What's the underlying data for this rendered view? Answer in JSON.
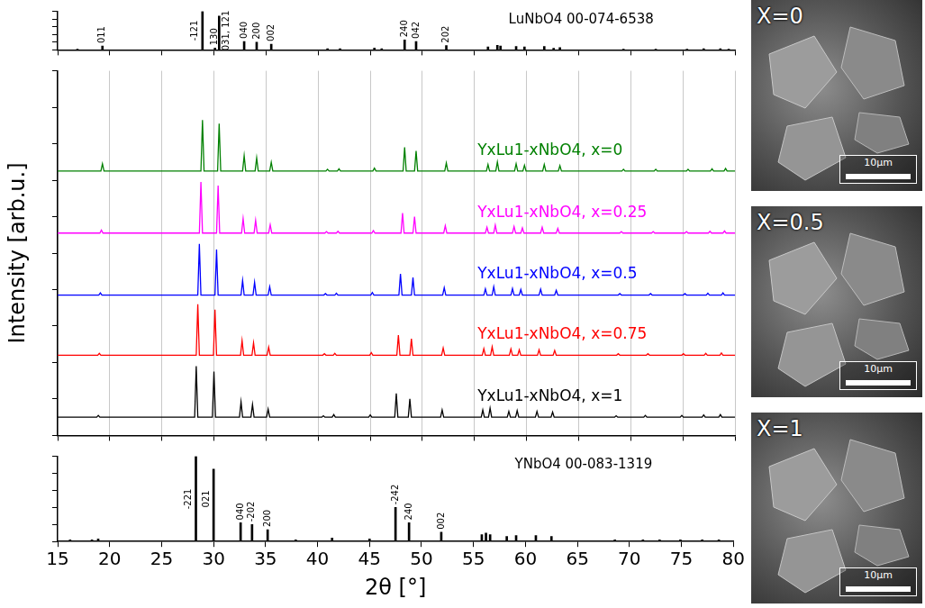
{
  "chart_data": [
    {
      "type": "bar",
      "title": "LuNbO4 00-074-6538",
      "color": "#000000",
      "x": [
        16.9,
        19.3,
        28.9,
        30.1,
        30.5,
        32.9,
        34.1,
        35.5,
        40.9,
        42.1,
        45.4,
        46.1,
        48.3,
        49.4,
        52.3,
        56.3,
        57.2,
        57.5,
        59.0,
        59.8,
        61.7,
        62.6,
        63.2,
        69.3,
        72.4,
        75.4,
        77.0,
        78.6,
        79.4
      ],
      "values": [
        2,
        10,
        100,
        5,
        88,
        22,
        20,
        15,
        3,
        3,
        5,
        3,
        26,
        22,
        11,
        8,
        12,
        10,
        9,
        8,
        9,
        4,
        6,
        2,
        2,
        2,
        3,
        3,
        2
      ],
      "annotations": [
        {
          "x": 19.3,
          "text": "011"
        },
        {
          "x": 28.9,
          "text": "-121"
        },
        {
          "x": 30.1,
          "text": "130"
        },
        {
          "x": 30.5,
          "text": "031, 121"
        },
        {
          "x": 32.9,
          "text": "040"
        },
        {
          "x": 34.1,
          "text": "200"
        },
        {
          "x": 35.5,
          "text": "002"
        },
        {
          "x": 48.3,
          "text": "240"
        },
        {
          "x": 49.4,
          "text": "042"
        },
        {
          "x": 52.3,
          "text": "202"
        }
      ],
      "xlim": [
        15,
        80
      ],
      "xticks": [
        15,
        20,
        25,
        30,
        35,
        40,
        45,
        50,
        55,
        60,
        65,
        70,
        75,
        80
      ],
      "ylim": [
        0,
        100
      ],
      "yticks": [
        0,
        20,
        40,
        60,
        80,
        100
      ],
      "grid": false,
      "tick_labels": false
    },
    {
      "type": "line",
      "ylabel": "Intensity [arb.u.]",
      "xlim": [
        15,
        80
      ],
      "xticks": [
        15,
        20,
        25,
        30,
        35,
        40,
        45,
        50,
        55,
        60,
        65,
        70,
        75,
        80
      ],
      "ylim": [
        0,
        100
      ],
      "yticks": [
        0,
        10,
        20,
        30,
        40,
        50,
        60,
        70,
        80,
        90,
        100
      ],
      "grid": true,
      "tick_labels": false,
      "series": [
        {
          "name": "YxLu1-xNbO4, x=0",
          "color": "#008000",
          "x": [
            15,
            19.15,
            19.3,
            19.45,
            28.75,
            28.9,
            29.05,
            30.35,
            30.5,
            30.65,
            32.75,
            32.9,
            33.05,
            33.95,
            34.1,
            34.25,
            35.35,
            35.5,
            35.65,
            40.75,
            40.9,
            41.05,
            41.85,
            42,
            42.15,
            45.25,
            45.4,
            45.55,
            48.15,
            48.3,
            48.45,
            49.25,
            49.4,
            49.55,
            52.15,
            52.3,
            52.45,
            56.15,
            56.3,
            56.45,
            57.05,
            57.2,
            57.35,
            58.85,
            59,
            59.15,
            59.65,
            59.8,
            59.95,
            61.55,
            61.7,
            61.85,
            63.05,
            63.2,
            63.35,
            69.15,
            69.3,
            69.45,
            72.25,
            72.4,
            72.55,
            75.35,
            75.5,
            75.65,
            77.65,
            77.8,
            77.95,
            78.95,
            79.1,
            79.25,
            80
          ],
          "values": [
            72.5,
            72.5,
            74.5,
            72.5,
            72.5,
            86.5,
            72.5,
            72.5,
            85.5,
            72.5,
            72.5,
            76.7,
            72.5,
            72.5,
            76.1,
            72.5,
            72.5,
            74.9,
            72.5,
            72.5,
            73,
            72.5,
            72.5,
            73.1,
            72.5,
            72.5,
            73.3,
            72.5,
            72.5,
            79,
            72.5,
            72.5,
            78,
            72.5,
            72.5,
            74.7,
            72.5,
            72.5,
            74.3,
            72.5,
            72.5,
            75,
            72.5,
            72.5,
            74.5,
            72.5,
            72.5,
            74.1,
            72.5,
            72.5,
            74.3,
            72.5,
            72.5,
            74,
            72.5,
            72.5,
            73,
            72.5,
            72.5,
            73,
            72.5,
            72.5,
            73,
            72.5,
            72.5,
            73.1,
            72.5,
            72.5,
            73.2,
            72.5,
            72.5
          ]
        },
        {
          "name": "YxLu1-xNbO4, x=0.25",
          "color": "#ff00ff",
          "x": [
            15,
            19.05,
            19.2,
            19.35,
            28.6,
            28.75,
            28.9,
            30.25,
            30.4,
            30.55,
            32.65,
            32.8,
            32.95,
            33.85,
            34,
            34.15,
            35.25,
            35.4,
            35.55,
            40.65,
            40.8,
            40.95,
            41.75,
            41.9,
            42.05,
            45.15,
            45.3,
            45.45,
            47.95,
            48.1,
            48.25,
            49.1,
            49.25,
            49.4,
            52.05,
            52.2,
            52.35,
            56.05,
            56.2,
            56.35,
            56.85,
            57,
            57.15,
            58.65,
            58.8,
            58.95,
            59.45,
            59.6,
            59.75,
            61.35,
            61.5,
            61.65,
            62.85,
            63,
            63.15,
            68.95,
            69.1,
            69.25,
            72,
            72.15,
            72.3,
            75.2,
            75.35,
            75.5,
            77.45,
            77.6,
            77.75,
            78.85,
            79,
            79.15,
            80
          ],
          "values": [
            55.5,
            55.5,
            56.3,
            55.5,
            55.5,
            69.5,
            55.5,
            55.5,
            68.5,
            55.5,
            55.5,
            59.5,
            55.5,
            55.5,
            59,
            55.5,
            55.5,
            57.8,
            55.5,
            55.5,
            55.9,
            55.5,
            55.5,
            56,
            55.5,
            55.5,
            56.2,
            55.5,
            55.5,
            61,
            55.5,
            55.5,
            60,
            55.5,
            55.5,
            57.5,
            55.5,
            55.5,
            57.1,
            55.5,
            55.5,
            57.7,
            55.5,
            55.5,
            57.3,
            55.5,
            55.5,
            56.9,
            55.5,
            55.5,
            57.1,
            55.5,
            55.5,
            56.8,
            55.5,
            55.5,
            55.9,
            55.5,
            55.5,
            55.9,
            55.5,
            55.5,
            55.9,
            55.5,
            55.5,
            56,
            55.5,
            55.5,
            56.1,
            55.5,
            55.5
          ]
        },
        {
          "name": "YxLu1-xNbO4, x=0.5",
          "color": "#0000ff",
          "x": [
            15,
            18.95,
            19.1,
            19.25,
            28.45,
            28.6,
            28.75,
            30.1,
            30.25,
            30.4,
            32.6,
            32.75,
            32.9,
            33.75,
            33.9,
            34.05,
            35.2,
            35.35,
            35.5,
            40.55,
            40.7,
            40.85,
            41.6,
            41.75,
            41.9,
            45.05,
            45.2,
            45.35,
            47.75,
            47.9,
            48.05,
            48.95,
            49.1,
            49.25,
            51.95,
            52.1,
            52.25,
            55.9,
            56.05,
            56.2,
            56.7,
            56.85,
            57,
            58.5,
            58.65,
            58.8,
            59.3,
            59.45,
            59.6,
            61.2,
            61.35,
            61.5,
            62.7,
            62.85,
            63,
            68.8,
            68.95,
            69.1,
            71.75,
            71.9,
            72.05,
            75.05,
            75.2,
            75.35,
            77.25,
            77.4,
            77.55,
            78.7,
            78.85,
            79,
            80
          ],
          "values": [
            38.5,
            38.5,
            39.1,
            38.5,
            38.5,
            52.5,
            38.5,
            38.5,
            51,
            38.5,
            38.5,
            42.5,
            38.5,
            38.5,
            42,
            38.5,
            38.5,
            40.8,
            38.5,
            38.5,
            38.9,
            38.5,
            38.5,
            39,
            38.5,
            38.5,
            39.2,
            38.5,
            38.5,
            44.3,
            38.5,
            38.5,
            43.3,
            38.5,
            38.5,
            40.5,
            38.5,
            38.5,
            40.2,
            38.5,
            38.5,
            40.8,
            38.5,
            38.5,
            40.3,
            38.5,
            38.5,
            40,
            38.5,
            38.5,
            40.1,
            38.5,
            38.5,
            39.8,
            38.5,
            38.5,
            38.9,
            38.5,
            38.5,
            38.9,
            38.5,
            38.5,
            38.9,
            38.5,
            38.5,
            39,
            38.5,
            38.5,
            39.1,
            38.5,
            38.5
          ]
        },
        {
          "name": "YxLu1-xNbO4, x=0.75",
          "color": "#ff0000",
          "x": [
            15,
            18.85,
            19,
            19.15,
            28.3,
            28.45,
            28.6,
            29.95,
            30.1,
            30.25,
            32.55,
            32.7,
            32.85,
            33.65,
            33.8,
            33.95,
            35.1,
            35.25,
            35.4,
            40.45,
            40.6,
            40.75,
            41.45,
            41.6,
            41.75,
            44.95,
            45.1,
            45.25,
            47.55,
            47.7,
            47.85,
            48.8,
            48.95,
            49.1,
            51.85,
            52,
            52.15,
            55.75,
            55.9,
            56.05,
            56.55,
            56.7,
            56.85,
            58.35,
            58.5,
            58.65,
            59.15,
            59.3,
            59.45,
            61.05,
            61.2,
            61.35,
            62.55,
            62.7,
            62.85,
            68.65,
            68.8,
            68.95,
            71.5,
            71.65,
            71.8,
            74.9,
            75.05,
            75.2,
            77.05,
            77.2,
            77.35,
            78.55,
            78.7,
            78.85,
            80
          ],
          "values": [
            22,
            22,
            22.5,
            22,
            22,
            36,
            22,
            22,
            34.5,
            22,
            22,
            26,
            22,
            22,
            25.4,
            22,
            22,
            24.2,
            22,
            22,
            22.4,
            22,
            22,
            22.5,
            22,
            22,
            22.7,
            22,
            22,
            27.5,
            22,
            22,
            26.5,
            22,
            22,
            24,
            22,
            22,
            23.8,
            22,
            22,
            24.3,
            22,
            22,
            23.7,
            22,
            22,
            23.5,
            22,
            22,
            23.5,
            22,
            22,
            23.3,
            22,
            22,
            22.4,
            22,
            22,
            22.4,
            22,
            22,
            22.4,
            22,
            22,
            22.5,
            22,
            22,
            22.6,
            22,
            22
          ]
        },
        {
          "name": "YxLu1-xNbO4, x=1",
          "color": "#000000",
          "x": [
            15,
            18.75,
            18.9,
            19.05,
            28.15,
            28.3,
            28.45,
            29.85,
            30,
            30.15,
            32.45,
            32.6,
            32.75,
            33.55,
            33.7,
            33.85,
            35.05,
            35.2,
            35.35,
            40.35,
            40.5,
            40.65,
            41.35,
            41.5,
            41.65,
            44.85,
            45,
            45.15,
            47.35,
            47.5,
            47.65,
            48.65,
            48.8,
            48.95,
            51.75,
            51.9,
            52.05,
            55.65,
            55.8,
            55.95,
            56.35,
            56.5,
            56.65,
            58.15,
            58.3,
            58.45,
            58.95,
            59.1,
            59.25,
            60.85,
            61,
            61.15,
            62.35,
            62.5,
            62.65,
            68.45,
            68.6,
            68.75,
            71.25,
            71.4,
            71.55,
            74.75,
            74.9,
            75.05,
            76.85,
            77,
            77.15,
            78.45,
            78.6,
            78.75,
            80
          ],
          "values": [
            5,
            5,
            5.5,
            5,
            5,
            19,
            5,
            5,
            17.5,
            5,
            5,
            9.2,
            5,
            5,
            8.5,
            5,
            5,
            7.2,
            5,
            5,
            5.4,
            5,
            5,
            5.7,
            5,
            5,
            5.6,
            5,
            5,
            11.5,
            5,
            5,
            10,
            5,
            5,
            7,
            5,
            5,
            7,
            5,
            5,
            7.5,
            5,
            5,
            6.6,
            5,
            5,
            6.8,
            5,
            5,
            6.6,
            5,
            5,
            6.4,
            5,
            5,
            5.4,
            5,
            5,
            5.5,
            5,
            5,
            5.5,
            5,
            5,
            5.6,
            5,
            5,
            5.7,
            5,
            5
          ]
        }
      ]
    },
    {
      "type": "bar",
      "title": "YNbO4 00-083-1319",
      "xlabel": "2θ [°]",
      "color": "#000000",
      "x": [
        16.2,
        18.3,
        18.9,
        28.3,
        30.0,
        32.6,
        33.7,
        35.2,
        37.9,
        41.4,
        45.0,
        47.5,
        48.8,
        51.9,
        55.8,
        56.2,
        56.6,
        58.2,
        59.1,
        61.0,
        62.5,
        68.6,
        71.3,
        72.9,
        74.9,
        77.0,
        78.6
      ],
      "values": [
        2,
        2,
        3,
        100,
        85,
        22,
        20,
        14,
        2,
        4,
        3,
        40,
        22,
        11,
        8,
        10,
        8,
        6,
        7,
        7,
        6,
        2,
        2,
        2,
        2,
        2,
        2
      ],
      "annotations": [
        {
          "x": 28.3,
          "text": "-221"
        },
        {
          "x": 30.0,
          "text": "021"
        },
        {
          "x": 32.6,
          "text": "040"
        },
        {
          "x": 33.7,
          "text": "-202"
        },
        {
          "x": 35.2,
          "text": "200"
        },
        {
          "x": 47.5,
          "text": "-242"
        },
        {
          "x": 48.8,
          "text": "240"
        },
        {
          "x": 51.9,
          "text": "002"
        }
      ],
      "xlim": [
        15,
        80
      ],
      "xticks": [
        15,
        20,
        25,
        30,
        35,
        40,
        45,
        50,
        55,
        60,
        65,
        70,
        75,
        80
      ],
      "ylim": [
        0,
        100
      ],
      "yticks": [
        0,
        20,
        40,
        60,
        80,
        100
      ],
      "grid": false,
      "tick_labels": "x"
    }
  ],
  "images": [
    {
      "label": "X=0",
      "scale_bar": "10µm"
    },
    {
      "label": "X=0.5",
      "scale_bar": "10µm"
    },
    {
      "label": "X=1",
      "scale_bar": "10µm"
    }
  ]
}
